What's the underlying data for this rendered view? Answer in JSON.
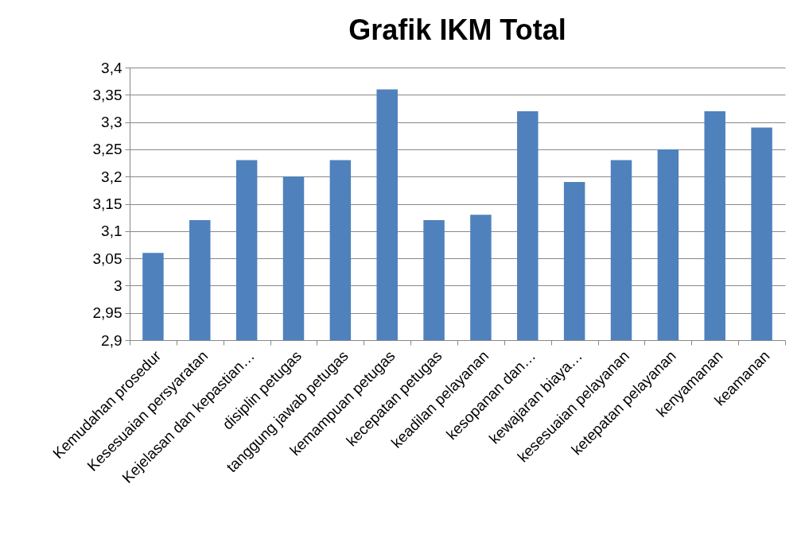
{
  "chart_data": {
    "type": "bar",
    "title": "Grafik IKM  Total",
    "categories": [
      "Kemudahan prosedur",
      "Kesesuaian persyaratan",
      "Kejelasan dan kepastian…",
      "disiplin petugas",
      "tanggung jawab petugas",
      "kemampuan petugas",
      "kecepatan petugas",
      "keadilan pelayanan",
      "kesopanan dan…",
      "kewajaran biaya…",
      "kesesuaian pelayanan",
      "ketepatan pelayanan",
      "kenyamanan",
      "keamanan"
    ],
    "values": [
      3.06,
      3.12,
      3.23,
      3.2,
      3.23,
      3.36,
      3.12,
      3.13,
      3.32,
      3.19,
      3.23,
      3.25,
      3.32,
      3.29
    ],
    "color": "#4f81bd",
    "ylim": [
      2.9,
      3.4
    ],
    "yticks": [
      {
        "value": 2.9,
        "label": "2,9"
      },
      {
        "value": 2.95,
        "label": "2,95"
      },
      {
        "value": 3,
        "label": "3"
      },
      {
        "value": 3.05,
        "label": "3,05"
      },
      {
        "value": 3.1,
        "label": "3,1"
      },
      {
        "value": 3.15,
        "label": "3,15"
      },
      {
        "value": 3.2,
        "label": "3,2"
      },
      {
        "value": 3.25,
        "label": "3,25"
      },
      {
        "value": 3.3,
        "label": "3,3"
      },
      {
        "value": 3.35,
        "label": "3,35"
      },
      {
        "value": 3.4,
        "label": "3,4"
      }
    ],
    "grid": "y"
  }
}
